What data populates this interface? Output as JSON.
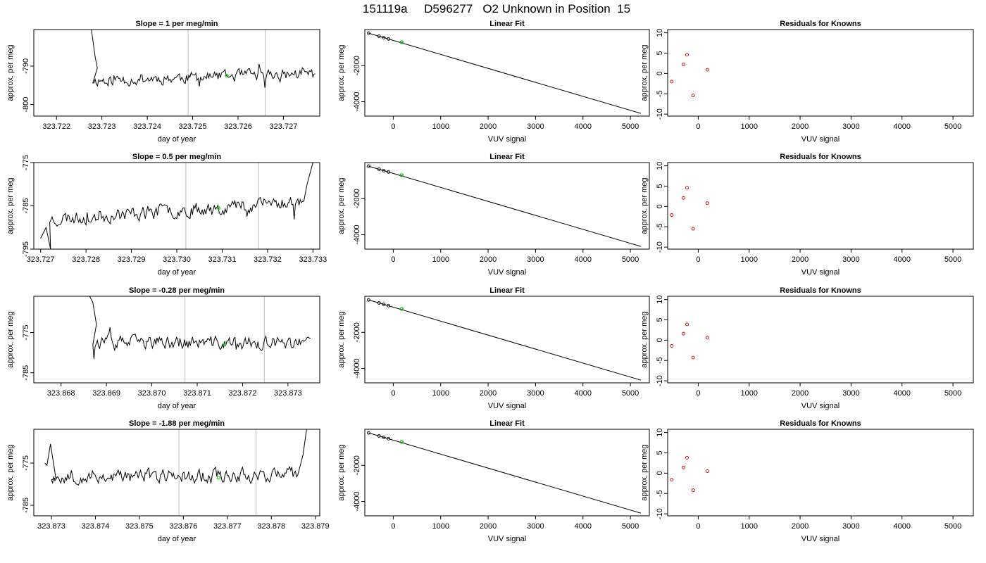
{
  "page_title": "151119a     D596277   O2 Unknown in Position  15",
  "colors": {
    "trace": "#000000",
    "marker": "#00cc00",
    "vline": "#c8c8c8",
    "known": "#cc0000",
    "fit_line": "#000000"
  },
  "chart_data": [
    {
      "type": "line",
      "title": "Slope =  1  per meg/min",
      "xlabel": "day of year",
      "ylabel": "approx. per meg",
      "xlim": [
        323.7215,
        323.7278
      ],
      "ylim": [
        -803,
        -780.5
      ],
      "xticks": [
        323.722,
        323.723,
        323.724,
        323.725,
        323.726,
        323.727
      ],
      "xtick_labels": [
        "323.722",
        "323.723",
        "323.724",
        "323.725",
        "323.726",
        "323.727"
      ],
      "yticks": [
        -790,
        -800
      ],
      "ytick_labels": [
        "-790",
        "-800"
      ],
      "vlines": [
        323.7249,
        323.7266
      ],
      "trace": {
        "x0": 323.7228,
        "x1": 323.7277,
        "n": 190,
        "mean": -792.8,
        "trend": 1.8,
        "amp": 1.5,
        "seed": 11,
        "start": [
          [
            323.72277,
            -780.5
          ],
          [
            323.72285,
            -787.5
          ],
          [
            323.7229,
            -790.5
          ]
        ],
        "end": []
      },
      "marker": [
        323.72575,
        -792.5
      ]
    },
    {
      "type": "line",
      "title": "Linear Fit",
      "xlabel": "VUV signal",
      "ylabel": "approx. per meg",
      "xlim": [
        -600,
        5400
      ],
      "ylim": [
        -4800,
        0
      ],
      "xticks": [
        0,
        1000,
        2000,
        3000,
        4000,
        5000
      ],
      "xtick_labels": [
        "0",
        "1000",
        "2000",
        "3000",
        "4000",
        "5000"
      ],
      "yticks": [
        -2000,
        -4000
      ],
      "ytick_labels": [
        "-2000",
        "-4000"
      ],
      "line": [
        [
          -520,
          -200
        ],
        [
          5220,
          -4650
        ]
      ],
      "points": [
        [
          -520,
          -200
        ],
        [
          -300,
          -370
        ],
        [
          -200,
          -450
        ],
        [
          -100,
          -520
        ],
        [
          175,
          -700
        ]
      ],
      "marker": [
        180,
        -700
      ]
    },
    {
      "type": "scatter",
      "title": "Residuals for Knowns",
      "xlabel": "VUV signal",
      "ylabel": "approx. per meg",
      "xlim": [
        -600,
        5400
      ],
      "ylim": [
        -10.5,
        10.8
      ],
      "xticks": [
        0,
        1000,
        2000,
        3000,
        4000,
        5000
      ],
      "xtick_labels": [
        "0",
        "1000",
        "2000",
        "3000",
        "4000",
        "5000"
      ],
      "yticks": [
        10,
        5,
        0,
        -5,
        -10
      ],
      "ytick_labels": [
        "10",
        "5",
        "0",
        "-5",
        "-10"
      ],
      "points": [
        [
          -520,
          -2
        ],
        [
          -290,
          2.2
        ],
        [
          -220,
          4.6
        ],
        [
          -100,
          -5.4
        ],
        [
          180,
          0.9
        ]
      ]
    },
    {
      "type": "line",
      "title": "Slope =  0.5  per meg/min",
      "xlabel": "day of year",
      "ylabel": "approx. per meg",
      "xlim": [
        323.72685,
        323.73315
      ],
      "ylim": [
        -795,
        -775
      ],
      "xticks": [
        323.727,
        323.728,
        323.729,
        323.73,
        323.731,
        323.732,
        323.733
      ],
      "xtick_labels": [
        "323.727",
        "323.728",
        "323.729",
        "323.730",
        "323.731",
        "323.732",
        "323.733"
      ],
      "yticks": [
        -775,
        -785,
        -795
      ],
      "ytick_labels": [
        "-775",
        "-785",
        "-795"
      ],
      "vlines": [
        323.7302,
        323.7318
      ],
      "trace": {
        "x0": 323.7272,
        "x1": 323.7328,
        "n": 210,
        "mean": -786,
        "trend": 4.2,
        "amp": 1.6,
        "seed": 23,
        "start": [
          [
            323.727,
            -792.5
          ],
          [
            323.72712,
            -790
          ],
          [
            323.72722,
            -795
          ]
        ],
        "end": [
          [
            323.73287,
            -780
          ],
          [
            323.733,
            -775
          ]
        ]
      },
      "marker": [
        323.73092,
        -785.5
      ]
    },
    {
      "type": "line",
      "title": "Linear Fit",
      "xlabel": "VUV signal",
      "ylabel": "approx. per meg",
      "xlim": [
        -600,
        5400
      ],
      "ylim": [
        -4800,
        0
      ],
      "xticks": [
        0,
        1000,
        2000,
        3000,
        4000,
        5000
      ],
      "xtick_labels": [
        "0",
        "1000",
        "2000",
        "3000",
        "4000",
        "5000"
      ],
      "yticks": [
        -2000,
        -4000
      ],
      "ytick_labels": [
        "-2000",
        "-4000"
      ],
      "line": [
        [
          -520,
          -200
        ],
        [
          5220,
          -4650
        ]
      ],
      "points": [
        [
          -520,
          -200
        ],
        [
          -300,
          -370
        ],
        [
          -200,
          -450
        ],
        [
          -100,
          -520
        ],
        [
          175,
          -700
        ]
      ],
      "marker": [
        180,
        -700
      ]
    },
    {
      "type": "scatter",
      "title": "Residuals for Knowns",
      "xlabel": "VUV signal",
      "ylabel": "approx. per meg",
      "xlim": [
        -600,
        5400
      ],
      "ylim": [
        -10.5,
        10.8
      ],
      "xticks": [
        0,
        1000,
        2000,
        3000,
        4000,
        5000
      ],
      "xtick_labels": [
        "0",
        "1000",
        "2000",
        "3000",
        "4000",
        "5000"
      ],
      "yticks": [
        10,
        5,
        0,
        -5,
        -10
      ],
      "ytick_labels": [
        "10",
        "5",
        "0",
        "-5",
        "-10"
      ],
      "points": [
        [
          -520,
          -2.1
        ],
        [
          -290,
          2.1
        ],
        [
          -220,
          4.6
        ],
        [
          -100,
          -5.5
        ],
        [
          180,
          0.8
        ]
      ]
    },
    {
      "type": "line",
      "title": "Slope =  -0.28  per meg/min",
      "xlabel": "day of year",
      "ylabel": "approx. per meg",
      "xlim": [
        323.8674,
        323.8737
      ],
      "ylim": [
        -787.5,
        -766
      ],
      "xticks": [
        323.868,
        323.869,
        323.87,
        323.871,
        323.872,
        323.873
      ],
      "xtick_labels": [
        "323.868",
        "323.869",
        "323.870",
        "323.871",
        "323.872",
        "323.873"
      ],
      "yticks": [
        -775,
        -785
      ],
      "ytick_labels": [
        "-775",
        "-785"
      ],
      "vlines": [
        323.87073,
        323.87248
      ],
      "trace": {
        "x0": 323.8687,
        "x1": 323.8735,
        "n": 190,
        "mean": -777.6,
        "trend": -0.5,
        "amp": 1.6,
        "seed": 37,
        "start": [
          [
            323.86863,
            -766
          ],
          [
            323.8687,
            -767.5
          ],
          [
            323.86878,
            -773
          ]
        ],
        "end": []
      },
      "marker": [
        323.8716,
        -778
      ]
    },
    {
      "type": "line",
      "title": "Linear Fit",
      "xlabel": "VUV signal",
      "ylabel": "approx. per meg",
      "xlim": [
        -600,
        5400
      ],
      "ylim": [
        -4800,
        0
      ],
      "xticks": [
        0,
        1000,
        2000,
        3000,
        4000,
        5000
      ],
      "xtick_labels": [
        "0",
        "1000",
        "2000",
        "3000",
        "4000",
        "5000"
      ],
      "yticks": [
        -2000,
        -4000
      ],
      "ytick_labels": [
        "-2000",
        "-4000"
      ],
      "line": [
        [
          -520,
          -200
        ],
        [
          5220,
          -4650
        ]
      ],
      "points": [
        [
          -520,
          -200
        ],
        [
          -300,
          -370
        ],
        [
          -200,
          -450
        ],
        [
          -100,
          -520
        ],
        [
          175,
          -700
        ]
      ],
      "marker": [
        180,
        -700
      ]
    },
    {
      "type": "scatter",
      "title": "Residuals for Knowns",
      "xlabel": "VUV signal",
      "ylabel": "approx. per meg",
      "xlim": [
        -600,
        5400
      ],
      "ylim": [
        -10.5,
        10.8
      ],
      "xticks": [
        0,
        1000,
        2000,
        3000,
        4000,
        5000
      ],
      "xtick_labels": [
        "0",
        "1000",
        "2000",
        "3000",
        "4000",
        "5000"
      ],
      "yticks": [
        10,
        5,
        0,
        -5,
        -10
      ],
      "ytick_labels": [
        "10",
        "5",
        "0",
        "-5",
        "-10"
      ],
      "points": [
        [
          -520,
          -1.4
        ],
        [
          -290,
          1.6
        ],
        [
          -220,
          3.9
        ],
        [
          -100,
          -4.3
        ],
        [
          180,
          0.6
        ]
      ]
    },
    {
      "type": "line",
      "title": "Slope =  -1.88  per meg/min",
      "xlabel": "day of year",
      "ylabel": "approx. per meg",
      "xlim": [
        323.8726,
        323.8791
      ],
      "ylim": [
        -787.5,
        -767
      ],
      "xticks": [
        323.873,
        323.874,
        323.875,
        323.876,
        323.877,
        323.878,
        323.879
      ],
      "xtick_labels": [
        "323.873",
        "323.874",
        "323.875",
        "323.876",
        "323.877",
        "323.878",
        "323.879"
      ],
      "yticks": [
        -775,
        -785
      ],
      "ytick_labels": [
        "-775",
        "-785"
      ],
      "vlines": [
        323.8759,
        323.87765
      ],
      "trace": {
        "x0": 323.873,
        "x1": 323.8786,
        "n": 210,
        "mean": -778,
        "trend": 0.6,
        "amp": 1.6,
        "seed": 53,
        "start": [
          [
            323.87285,
            -775
          ],
          [
            323.8729,
            -775.5
          ],
          [
            323.87298,
            -770.5
          ],
          [
            323.8731,
            -778.5
          ]
        ],
        "end": [
          [
            323.87872,
            -773
          ],
          [
            323.8788,
            -767
          ]
        ]
      },
      "marker": [
        323.8768,
        -778.5
      ]
    },
    {
      "type": "line",
      "title": "Linear Fit",
      "xlabel": "VUV signal",
      "ylabel": "approx. per meg",
      "xlim": [
        -600,
        5400
      ],
      "ylim": [
        -4800,
        0
      ],
      "xticks": [
        0,
        1000,
        2000,
        3000,
        4000,
        5000
      ],
      "xtick_labels": [
        "0",
        "1000",
        "2000",
        "3000",
        "4000",
        "5000"
      ],
      "yticks": [
        -2000,
        -4000
      ],
      "ytick_labels": [
        "-2000",
        "-4000"
      ],
      "line": [
        [
          -520,
          -200
        ],
        [
          5220,
          -4650
        ]
      ],
      "points": [
        [
          -520,
          -200
        ],
        [
          -300,
          -370
        ],
        [
          -200,
          -450
        ],
        [
          -100,
          -520
        ],
        [
          175,
          -700
        ]
      ],
      "marker": [
        180,
        -700
      ]
    },
    {
      "type": "scatter",
      "title": "Residuals for Knowns",
      "xlabel": "VUV signal",
      "ylabel": "approx. per meg",
      "xlim": [
        -600,
        5400
      ],
      "ylim": [
        -10.5,
        10.8
      ],
      "xticks": [
        0,
        1000,
        2000,
        3000,
        4000,
        5000
      ],
      "xtick_labels": [
        "0",
        "1000",
        "2000",
        "3000",
        "4000",
        "5000"
      ],
      "yticks": [
        10,
        5,
        0,
        -5,
        -10
      ],
      "ytick_labels": [
        "10",
        "5",
        "0",
        "-5",
        "-10"
      ],
      "points": [
        [
          -520,
          -1.6
        ],
        [
          -290,
          1.4
        ],
        [
          -220,
          3.8
        ],
        [
          -100,
          -4.2
        ],
        [
          180,
          0.5
        ]
      ]
    }
  ]
}
